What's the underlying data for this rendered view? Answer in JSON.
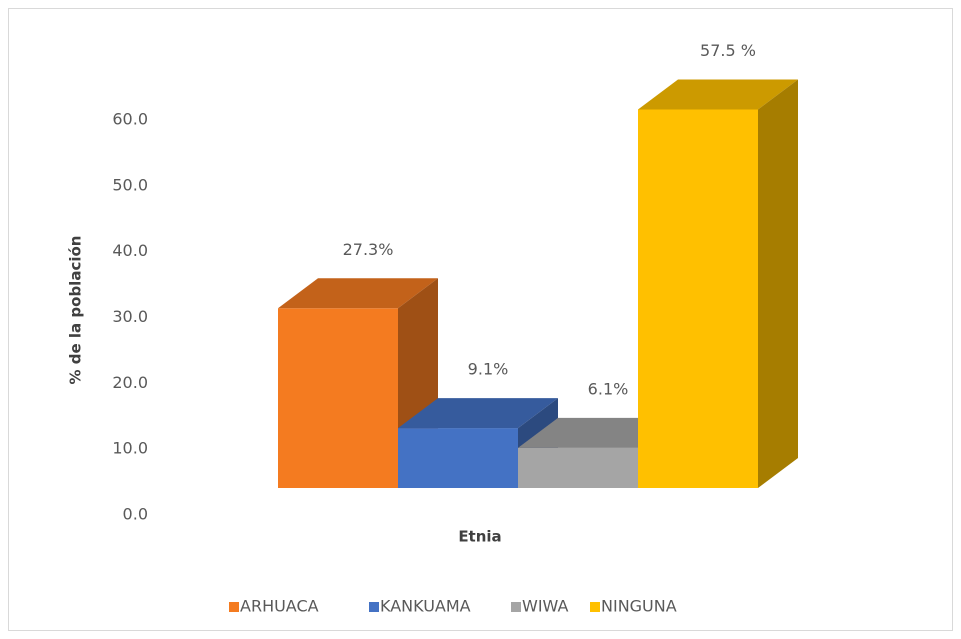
{
  "chart_data": {
    "type": "bar",
    "x_label": "Etnia",
    "y_label": "% de la población",
    "categories": [
      "ARHUACA",
      "KANKUAMA",
      "WIWA",
      "NINGUNA"
    ],
    "values": [
      27.3,
      9.1,
      6.1,
      57.5
    ],
    "value_labels": [
      "27.3%",
      "9.1%",
      "6.1%",
      "57.5 %"
    ],
    "colors": [
      "#f47b20",
      "#4472c4",
      "#a5a5a5",
      "#ffc000"
    ],
    "ylim": [
      0,
      60
    ],
    "yticks": [
      {
        "value": 0,
        "label": "0.0"
      },
      {
        "value": 10,
        "label": "10.0"
      },
      {
        "value": 20,
        "label": "20.0"
      },
      {
        "value": 30,
        "label": "30.0"
      },
      {
        "value": 40,
        "label": "40.0"
      },
      {
        "value": 50,
        "label": "50.0"
      },
      {
        "value": 60,
        "label": "60.0"
      }
    ],
    "legend": "bottom"
  }
}
